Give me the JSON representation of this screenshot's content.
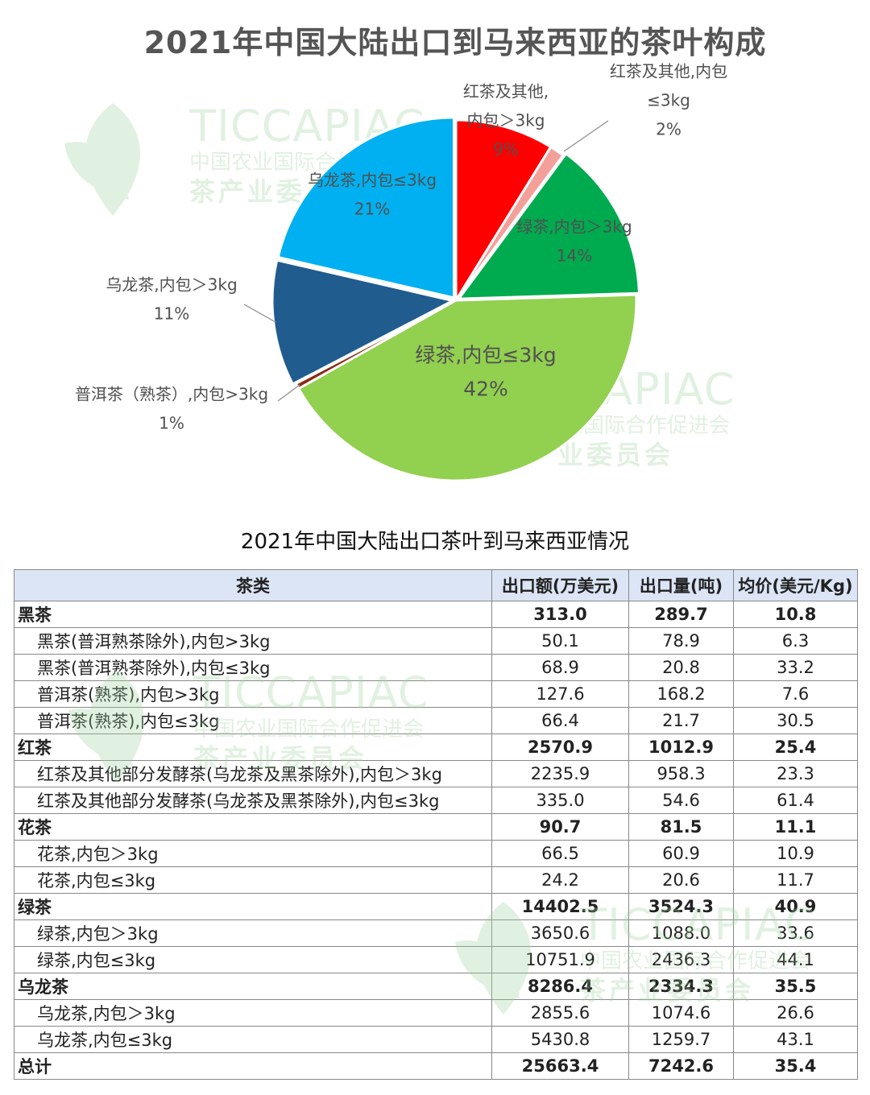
{
  "chart_data": {
    "type": "pie",
    "title": "2021年中国大陆出口到马来西亚的茶叶构成",
    "slices": [
      {
        "name_lines": [
          "红茶及其他,",
          "内包＞3kg"
        ],
        "pct_label": "9%",
        "value": 2235.9,
        "color": "#ff0000"
      },
      {
        "name_lines": [
          "红茶及其他,内包",
          "≤3kg"
        ],
        "pct_label": "2%",
        "value": 335.0,
        "color": "#f4a09a"
      },
      {
        "name_lines": [
          "绿茶,内包＞3kg"
        ],
        "pct_label": "14%",
        "value": 3650.6,
        "color": "#00aa4f"
      },
      {
        "name_lines": [
          "绿茶,内包≤3kg"
        ],
        "pct_label": "42%",
        "value": 10751.9,
        "color": "#92d050"
      },
      {
        "name_lines": [
          "普洱茶（熟茶）,内包>3kg"
        ],
        "pct_label": "1%",
        "value": 127.6,
        "color": "#8b2a10"
      },
      {
        "name_lines": [
          "乌龙茶,内包＞3kg"
        ],
        "pct_label": "11%",
        "value": 2855.6,
        "color": "#215c8f"
      },
      {
        "name_lines": [
          "乌龙茶,内包≤3kg"
        ],
        "pct_label": "21%",
        "value": 5430.8,
        "color": "#00b0f0"
      }
    ]
  },
  "watermark": {
    "main": "TICCAPIAC",
    "sub": "中国农业国际合作促进会",
    "sub2": "茶产业委员会"
  },
  "table": {
    "title": "2021年中国大陆出口茶叶到马来西亚情况",
    "headers": [
      "茶类",
      "出口额(万美元)",
      "出口量(吨)",
      "均价(美元/Kg)"
    ],
    "rows": [
      {
        "kind": "group",
        "cells": [
          "黑茶",
          "313.0",
          "289.7",
          "10.8"
        ]
      },
      {
        "kind": "sub",
        "cells": [
          "黑茶(普洱熟茶除外),内包>3kg",
          "50.1",
          "78.9",
          "6.3"
        ]
      },
      {
        "kind": "sub",
        "cells": [
          "黑茶(普洱熟茶除外),内包≤3kg",
          "68.9",
          "20.8",
          "33.2"
        ]
      },
      {
        "kind": "sub",
        "cells": [
          "普洱茶(熟茶),内包>3kg",
          "127.6",
          "168.2",
          "7.6"
        ]
      },
      {
        "kind": "sub",
        "cells": [
          "普洱茶(熟茶),内包≤3kg",
          "66.4",
          "21.7",
          "30.5"
        ]
      },
      {
        "kind": "group",
        "cells": [
          "红茶",
          "2570.9",
          "1012.9",
          "25.4"
        ]
      },
      {
        "kind": "sub",
        "cells": [
          "红茶及其他部分发酵茶(乌龙茶及黑茶除外),内包＞3kg",
          "2235.9",
          "958.3",
          "23.3"
        ]
      },
      {
        "kind": "sub",
        "cells": [
          "红茶及其他部分发酵茶(乌龙茶及黑茶除外),内包≤3kg",
          "335.0",
          "54.6",
          "61.4"
        ]
      },
      {
        "kind": "group",
        "cells": [
          "花茶",
          "90.7",
          "81.5",
          "11.1"
        ]
      },
      {
        "kind": "sub",
        "cells": [
          "花茶,内包＞3kg",
          "66.5",
          "60.9",
          "10.9"
        ]
      },
      {
        "kind": "sub",
        "cells": [
          "花茶,内包≤3kg",
          "24.2",
          "20.6",
          "11.7"
        ]
      },
      {
        "kind": "group",
        "cells": [
          "绿茶",
          "14402.5",
          "3524.3",
          "40.9"
        ]
      },
      {
        "kind": "sub",
        "cells": [
          "绿茶,内包＞3kg",
          "3650.6",
          "1088.0",
          "33.6"
        ]
      },
      {
        "kind": "sub",
        "cells": [
          "绿茶,内包≤3kg",
          "10751.9",
          "2436.3",
          "44.1"
        ]
      },
      {
        "kind": "group",
        "cells": [
          "乌龙茶",
          "8286.4",
          "2334.3",
          "35.5"
        ]
      },
      {
        "kind": "sub",
        "cells": [
          "乌龙茶,内包＞3kg",
          "2855.6",
          "1074.6",
          "26.6"
        ]
      },
      {
        "kind": "sub",
        "cells": [
          "乌龙茶,内包≤3kg",
          "5430.8",
          "1259.7",
          "43.1"
        ]
      },
      {
        "kind": "total",
        "cells": [
          "总计",
          "25663.4",
          "7242.6",
          "35.4"
        ]
      }
    ]
  }
}
